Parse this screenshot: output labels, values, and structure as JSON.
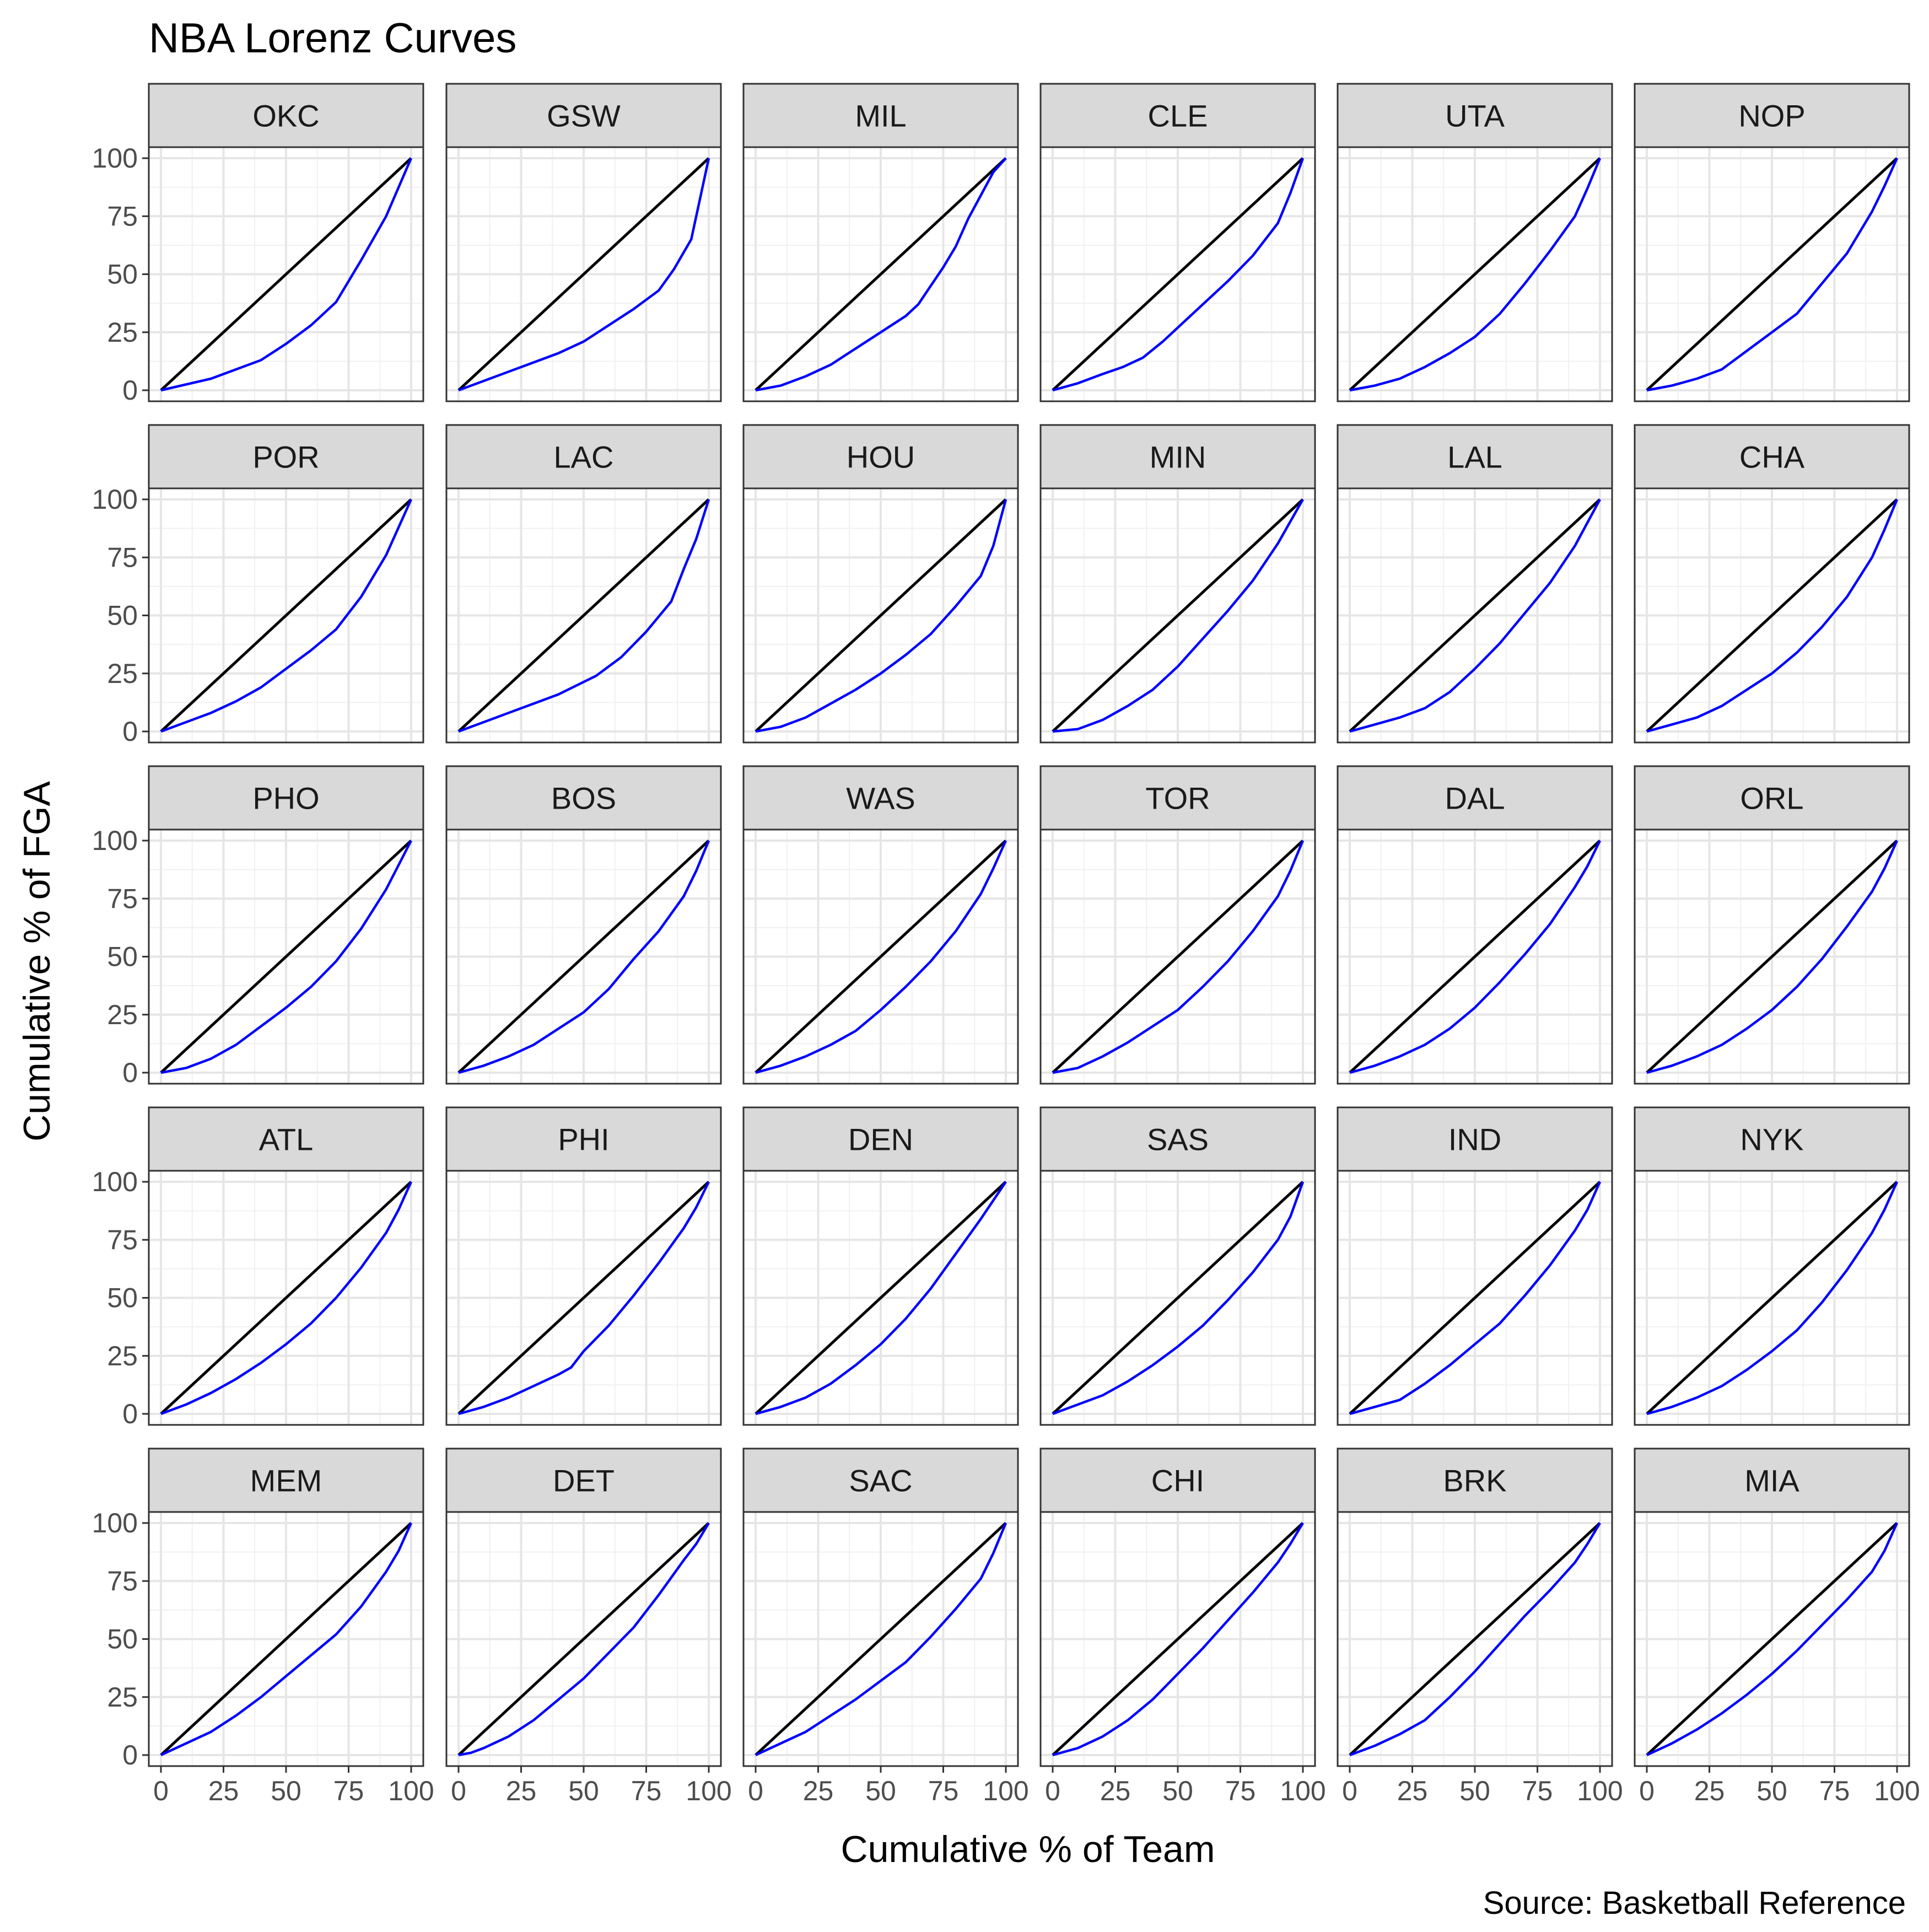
{
  "title": "NBA Lorenz Curves",
  "caption": "Source: Basketball Reference",
  "chart_data": {
    "type": "line",
    "title": "NBA Lorenz Curves",
    "xlabel": "Cumulative % of Team",
    "ylabel": "Cumulative % of FGA",
    "xlim": [
      0,
      100
    ],
    "ylim": [
      0,
      100
    ],
    "xticks": [
      "0",
      "25",
      "50",
      "75",
      "100"
    ],
    "yticks": [
      "0",
      "25",
      "50",
      "75",
      "100"
    ],
    "grid": true,
    "colors": {
      "equality": "#000000",
      "lorenz": "#0000ff",
      "strip": "#d9d9d9"
    },
    "panels": [
      {
        "team": "OKC",
        "x": [
          0,
          20,
          40,
          50,
          60,
          70,
          80,
          90,
          100
        ],
        "y": [
          0,
          5,
          13,
          20,
          28,
          38,
          56,
          75,
          100
        ]
      },
      {
        "team": "GSW",
        "x": [
          0,
          10,
          20,
          30,
          40,
          50,
          60,
          70,
          80,
          86,
          93,
          100
        ],
        "y": [
          0,
          4,
          8,
          12,
          16,
          21,
          28,
          35,
          43,
          52,
          65,
          100
        ]
      },
      {
        "team": "MIL",
        "x": [
          0,
          10,
          20,
          30,
          40,
          50,
          60,
          65,
          70,
          75,
          80,
          85,
          90,
          95,
          100
        ],
        "y": [
          0,
          2,
          6,
          11,
          18,
          25,
          32,
          37,
          45,
          53,
          62,
          74,
          84,
          94,
          100
        ]
      },
      {
        "team": "CLE",
        "x": [
          0,
          10,
          20,
          28,
          36,
          44,
          52,
          60,
          70,
          80,
          90,
          95,
          100
        ],
        "y": [
          0,
          3,
          7,
          10,
          14,
          21,
          29,
          37,
          47,
          58,
          72,
          85,
          100
        ]
      },
      {
        "team": "UTA",
        "x": [
          0,
          10,
          20,
          30,
          40,
          50,
          60,
          70,
          80,
          90,
          95,
          100
        ],
        "y": [
          0,
          2,
          5,
          10,
          16,
          23,
          33,
          46,
          60,
          75,
          87,
          100
        ]
      },
      {
        "team": "NOP",
        "x": [
          0,
          10,
          20,
          30,
          40,
          50,
          60,
          70,
          80,
          90,
          95,
          100
        ],
        "y": [
          0,
          2,
          5,
          9,
          17,
          25,
          33,
          46,
          59,
          77,
          88,
          100
        ]
      },
      {
        "team": "POR",
        "x": [
          0,
          10,
          20,
          30,
          40,
          50,
          60,
          70,
          80,
          90,
          95,
          100
        ],
        "y": [
          0,
          4,
          8,
          13,
          19,
          27,
          35,
          44,
          58,
          76,
          88,
          100
        ]
      },
      {
        "team": "LAC",
        "x": [
          0,
          10,
          20,
          30,
          40,
          55,
          65,
          75,
          85,
          90,
          95,
          100
        ],
        "y": [
          0,
          4,
          8,
          12,
          16,
          24,
          32,
          43,
          56,
          70,
          83,
          100
        ]
      },
      {
        "team": "HOU",
        "x": [
          0,
          5,
          10,
          20,
          30,
          40,
          50,
          60,
          70,
          80,
          90,
          95,
          100
        ],
        "y": [
          0,
          1,
          2,
          6,
          12,
          18,
          25,
          33,
          42,
          54,
          67,
          80,
          100
        ]
      },
      {
        "team": "MIN",
        "x": [
          0,
          10,
          20,
          30,
          40,
          50,
          60,
          70,
          80,
          90,
          100
        ],
        "y": [
          0,
          1,
          5,
          11,
          18,
          28,
          40,
          52,
          65,
          81,
          100
        ]
      },
      {
        "team": "LAL",
        "x": [
          0,
          10,
          20,
          30,
          40,
          50,
          60,
          70,
          80,
          90,
          100
        ],
        "y": [
          0,
          3,
          6,
          10,
          17,
          27,
          38,
          51,
          64,
          80,
          100
        ]
      },
      {
        "team": "CHA",
        "x": [
          0,
          10,
          20,
          30,
          40,
          50,
          60,
          70,
          80,
          90,
          95,
          100
        ],
        "y": [
          0,
          3,
          6,
          11,
          18,
          25,
          34,
          45,
          58,
          75,
          87,
          100
        ]
      },
      {
        "team": "PHO",
        "x": [
          0,
          10,
          20,
          30,
          40,
          50,
          60,
          70,
          80,
          90,
          100
        ],
        "y": [
          0,
          2,
          6,
          12,
          20,
          28,
          37,
          48,
          62,
          79,
          100
        ]
      },
      {
        "team": "BOS",
        "x": [
          0,
          10,
          20,
          30,
          40,
          50,
          60,
          70,
          80,
          90,
          95,
          100
        ],
        "y": [
          0,
          3,
          7,
          12,
          19,
          26,
          36,
          49,
          61,
          76,
          87,
          100
        ]
      },
      {
        "team": "WAS",
        "x": [
          0,
          10,
          20,
          30,
          40,
          50,
          60,
          70,
          80,
          90,
          95,
          100
        ],
        "y": [
          0,
          3,
          7,
          12,
          18,
          27,
          37,
          48,
          61,
          77,
          88,
          100
        ]
      },
      {
        "team": "TOR",
        "x": [
          0,
          10,
          20,
          30,
          40,
          50,
          60,
          70,
          80,
          90,
          95,
          100
        ],
        "y": [
          0,
          2,
          7,
          13,
          20,
          27,
          37,
          48,
          61,
          76,
          87,
          100
        ]
      },
      {
        "team": "DAL",
        "x": [
          0,
          10,
          20,
          30,
          40,
          50,
          60,
          70,
          80,
          90,
          95,
          100
        ],
        "y": [
          0,
          3,
          7,
          12,
          19,
          28,
          39,
          51,
          64,
          80,
          89,
          100
        ]
      },
      {
        "team": "ORL",
        "x": [
          0,
          10,
          20,
          30,
          40,
          50,
          60,
          70,
          80,
          90,
          95,
          100
        ],
        "y": [
          0,
          3,
          7,
          12,
          19,
          27,
          37,
          49,
          63,
          78,
          88,
          100
        ]
      },
      {
        "team": "ATL",
        "x": [
          0,
          10,
          20,
          30,
          40,
          50,
          60,
          70,
          80,
          90,
          95,
          100
        ],
        "y": [
          0,
          4,
          9,
          15,
          22,
          30,
          39,
          50,
          63,
          78,
          88,
          100
        ]
      },
      {
        "team": "PHI",
        "x": [
          0,
          10,
          20,
          30,
          40,
          45,
          50,
          60,
          70,
          80,
          90,
          95,
          100
        ],
        "y": [
          0,
          3,
          7,
          12,
          17,
          20,
          27,
          38,
          51,
          65,
          80,
          89,
          100
        ]
      },
      {
        "team": "DEN",
        "x": [
          0,
          10,
          20,
          30,
          40,
          50,
          60,
          70,
          80,
          90,
          100
        ],
        "y": [
          0,
          3,
          7,
          13,
          21,
          30,
          41,
          54,
          69,
          84,
          100
        ]
      },
      {
        "team": "SAS",
        "x": [
          0,
          10,
          20,
          30,
          40,
          50,
          60,
          70,
          80,
          90,
          95,
          100
        ],
        "y": [
          0,
          4,
          8,
          14,
          21,
          29,
          38,
          49,
          61,
          75,
          85,
          100
        ]
      },
      {
        "team": "IND",
        "x": [
          0,
          10,
          20,
          30,
          40,
          50,
          60,
          70,
          80,
          90,
          95,
          100
        ],
        "y": [
          0,
          3,
          6,
          13,
          21,
          30,
          39,
          51,
          64,
          79,
          88,
          100
        ]
      },
      {
        "team": "NYK",
        "x": [
          0,
          10,
          20,
          30,
          40,
          50,
          60,
          70,
          80,
          90,
          95,
          100
        ],
        "y": [
          0,
          3,
          7,
          12,
          19,
          27,
          36,
          48,
          62,
          78,
          88,
          100
        ]
      },
      {
        "team": "MEM",
        "x": [
          0,
          10,
          20,
          30,
          40,
          50,
          60,
          70,
          80,
          90,
          95,
          100
        ],
        "y": [
          0,
          5,
          10,
          17,
          25,
          34,
          43,
          52,
          64,
          79,
          88,
          100
        ]
      },
      {
        "team": "DET",
        "x": [
          0,
          5,
          10,
          20,
          30,
          40,
          50,
          60,
          70,
          80,
          90,
          95,
          100
        ],
        "y": [
          0,
          1,
          3,
          8,
          15,
          24,
          33,
          44,
          55,
          69,
          84,
          91,
          100
        ]
      },
      {
        "team": "SAC",
        "x": [
          0,
          10,
          20,
          30,
          40,
          50,
          60,
          70,
          80,
          90,
          95,
          100
        ],
        "y": [
          0,
          5,
          10,
          17,
          24,
          32,
          40,
          51,
          63,
          76,
          87,
          100
        ]
      },
      {
        "team": "CHI",
        "x": [
          0,
          10,
          20,
          30,
          40,
          50,
          60,
          70,
          80,
          90,
          95,
          100
        ],
        "y": [
          0,
          3,
          8,
          15,
          24,
          35,
          46,
          58,
          70,
          83,
          91,
          100
        ]
      },
      {
        "team": "BRK",
        "x": [
          0,
          10,
          20,
          30,
          40,
          50,
          60,
          70,
          80,
          90,
          95,
          100
        ],
        "y": [
          0,
          4,
          9,
          15,
          25,
          36,
          48,
          60,
          71,
          83,
          91,
          100
        ]
      },
      {
        "team": "MIA",
        "x": [
          0,
          10,
          20,
          30,
          40,
          50,
          60,
          70,
          80,
          90,
          95,
          100
        ],
        "y": [
          0,
          5,
          11,
          18,
          26,
          35,
          45,
          56,
          67,
          79,
          88,
          100
        ]
      }
    ]
  }
}
